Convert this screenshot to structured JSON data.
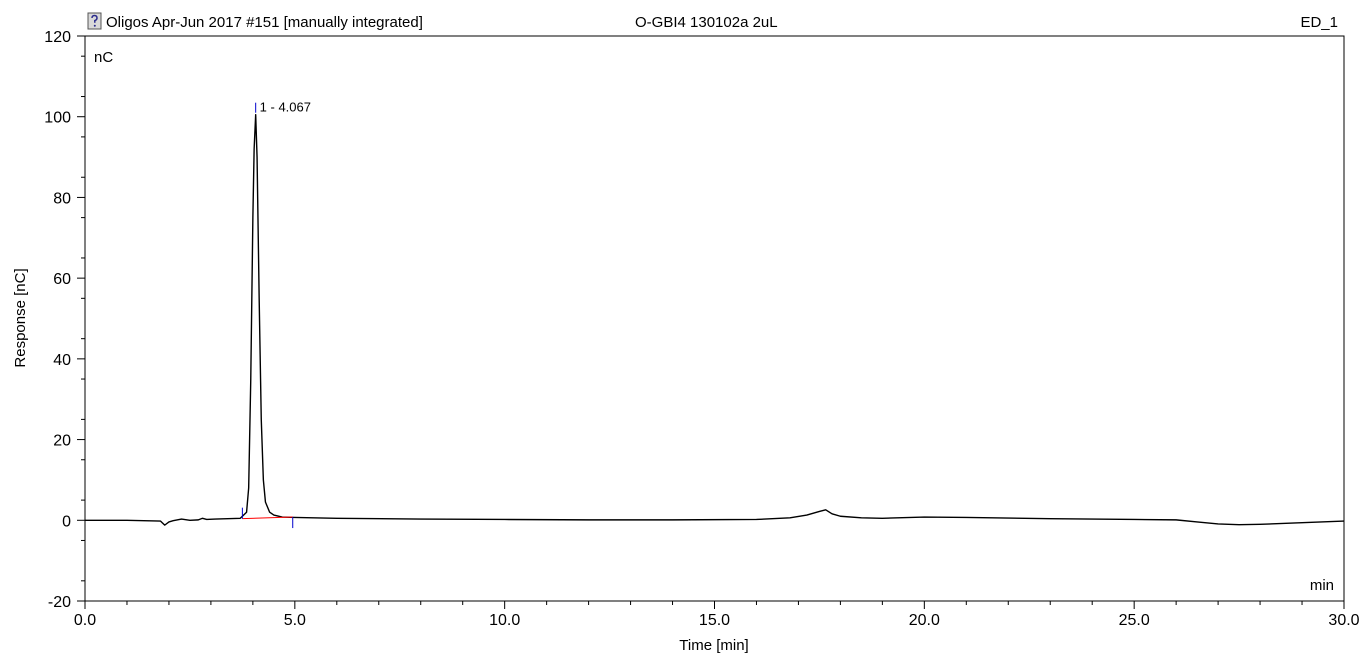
{
  "header": {
    "sequence": "Oligos Apr-Jun 2017 #151 [manually integrated]",
    "sample": "O-GBI4 130102a 2uL",
    "channel": "ED_1"
  },
  "icons": {
    "header_icon": "help-document-icon"
  },
  "chart_data": {
    "type": "line",
    "title": "",
    "xlabel": "Time [min]",
    "ylabel": "Response [nC]",
    "y_unit": "nC",
    "x_unit": "min",
    "xlim": [
      0,
      30
    ],
    "ylim": [
      -20,
      120
    ],
    "xticks": [
      0,
      5,
      10,
      15,
      20,
      25,
      30
    ],
    "xtick_labels": [
      "0.0",
      "5.0",
      "10.0",
      "15.0",
      "20.0",
      "25.0",
      "30.0"
    ],
    "yticks": [
      -20,
      0,
      20,
      40,
      60,
      80,
      100,
      120
    ],
    "ytick_labels": [
      "-20",
      "0",
      "20",
      "40",
      "60",
      "80",
      "100",
      "120"
    ],
    "grid": false,
    "series": [
      {
        "color": "#000000",
        "x": [
          0.0,
          1.0,
          1.8,
          1.9,
          2.0,
          2.1,
          2.3,
          2.5,
          2.7,
          2.8,
          2.9,
          3.1,
          3.4,
          3.7,
          3.85,
          3.9,
          3.95,
          4.0,
          4.03,
          4.067,
          4.1,
          4.15,
          4.2,
          4.25,
          4.3,
          4.4,
          4.5,
          4.7,
          5.0,
          6.0,
          8.0,
          10.0,
          12.0,
          14.0,
          16.0,
          16.8,
          17.2,
          17.5,
          17.65,
          17.8,
          18.0,
          18.5,
          19.0,
          20.0,
          21.0,
          23.0,
          25.0,
          26.0,
          26.5,
          27.0,
          27.5,
          28.0,
          29.0,
          30.0
        ],
        "y": [
          0.0,
          0.0,
          -0.2,
          -1.2,
          -0.4,
          -0.1,
          0.3,
          0.0,
          0.1,
          0.5,
          0.2,
          0.3,
          0.4,
          0.5,
          2.0,
          8.0,
          35.0,
          75.0,
          92.0,
          100.5,
          90.0,
          55.0,
          25.0,
          10.0,
          4.5,
          2.0,
          1.3,
          0.8,
          0.7,
          0.5,
          0.3,
          0.2,
          0.1,
          0.1,
          0.2,
          0.6,
          1.3,
          2.2,
          2.6,
          1.6,
          1.0,
          0.6,
          0.5,
          0.8,
          0.7,
          0.4,
          0.2,
          0.1,
          -0.4,
          -0.9,
          -1.1,
          -1.0,
          -0.6,
          -0.2
        ]
      }
    ],
    "peaks": [
      {
        "label": "1 - 4.067",
        "rt": 4.067,
        "height": 100.5,
        "start": 3.75,
        "end": 4.95,
        "start_y": 0.4,
        "end_y": 0.8
      }
    ],
    "baseline_color": "#ff0000",
    "marker_color": "#0000cc"
  }
}
